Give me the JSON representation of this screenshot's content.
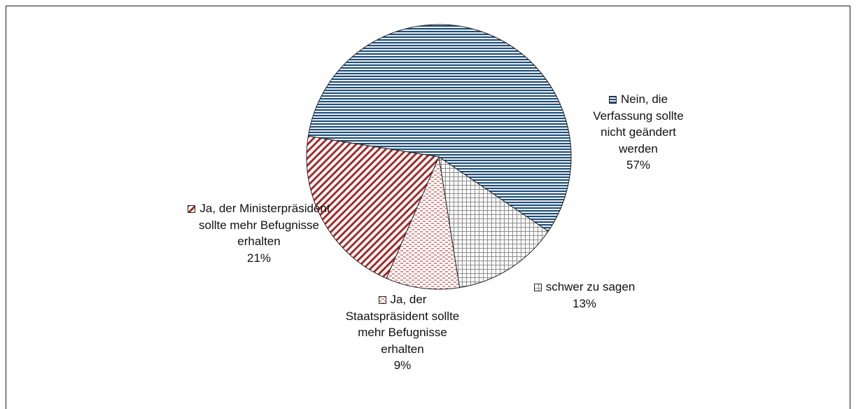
{
  "chart_data": {
    "type": "pie",
    "categories": [
      "Nein, die Verfassung sollte nicht geändert werden",
      "schwer zu sagen",
      "Ja, der Staatspräsident sollte mehr Befugnisse erhalten",
      "Ja, der Ministerpräsident sollte mehr Befugnisse erhalten"
    ],
    "values": [
      57,
      13,
      9,
      21
    ],
    "value_labels": [
      "57%",
      "13%",
      "9%",
      "21%"
    ],
    "colors": [
      "#1f4e79",
      "#8c8c8c",
      "#c0504d",
      "#a52a2a"
    ]
  }
}
